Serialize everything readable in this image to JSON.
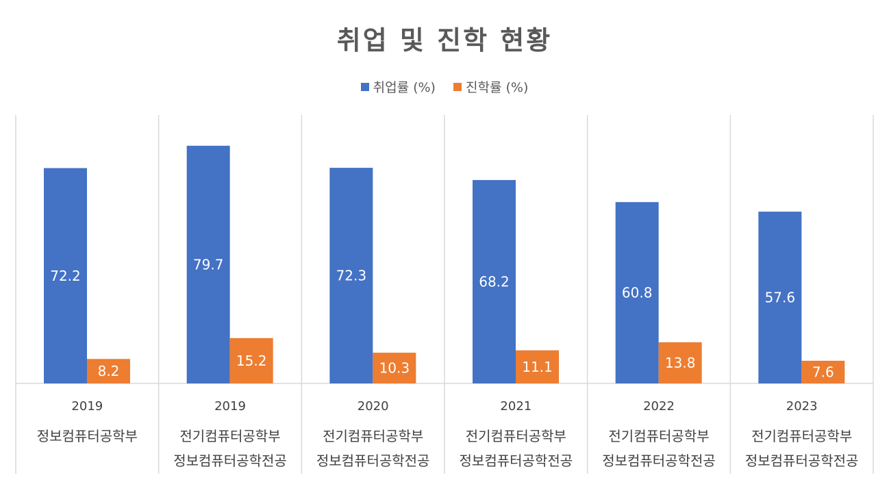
{
  "chart_data": {
    "type": "bar",
    "title": "취업 및 진학 현황",
    "categories": [
      {
        "year": "2019",
        "dept": [
          "정보컴퓨터공학부"
        ]
      },
      {
        "year": "2019",
        "dept": [
          "전기컴퓨터공학부",
          "정보컴퓨터공학전공"
        ]
      },
      {
        "year": "2020",
        "dept": [
          "전기컴퓨터공학부",
          "정보컴퓨터공학전공"
        ]
      },
      {
        "year": "2021",
        "dept": [
          "전기컴퓨터공학부",
          "정보컴퓨터공학전공"
        ]
      },
      {
        "year": "2022",
        "dept": [
          "전기컴퓨터공학부",
          "정보컴퓨터공학전공"
        ]
      },
      {
        "year": "2023",
        "dept": [
          "전기컴퓨터공학부",
          "정보컴퓨터공학전공"
        ]
      }
    ],
    "series": [
      {
        "name": "취업률 (%)",
        "color": "#4472C4",
        "values": [
          72.2,
          79.7,
          72.3,
          68.2,
          60.8,
          57.6
        ]
      },
      {
        "name": "진학률 (%)",
        "color": "#ED7D31",
        "values": [
          8.2,
          15.2,
          10.3,
          11.1,
          13.8,
          7.6
        ]
      }
    ],
    "ylim": [
      0,
      90
    ],
    "legend": "top",
    "grid": false,
    "data_labels": true
  }
}
